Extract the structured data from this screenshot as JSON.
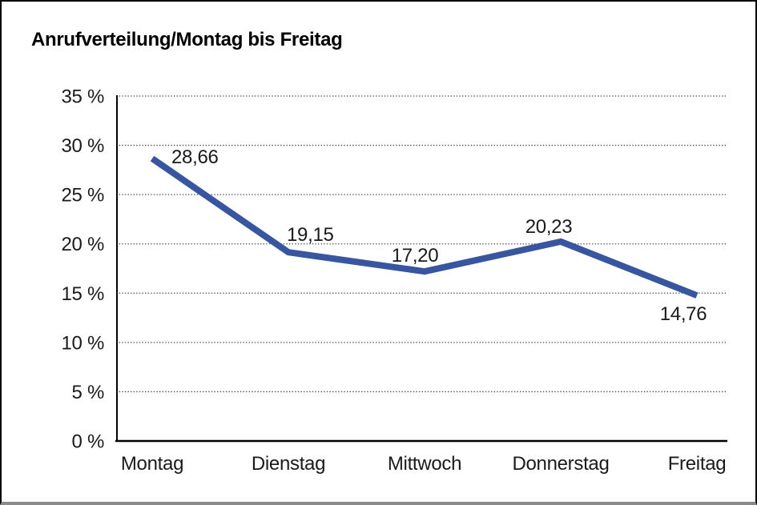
{
  "chart_data": {
    "type": "line",
    "title": "Anrufverteilung/Montag bis Freitag",
    "categories": [
      "Montag",
      "Dienstag",
      "Mittwoch",
      "Donnerstag",
      "Freitag"
    ],
    "series": [
      {
        "name": "Anrufverteilung",
        "values": [
          28.66,
          19.15,
          17.2,
          20.23,
          14.76
        ]
      }
    ],
    "point_labels": [
      "28,66",
      "19,15",
      "17,20",
      "20,23",
      "14,76"
    ],
    "y_ticks": [
      {
        "value": 0,
        "label": "0 %"
      },
      {
        "value": 5,
        "label": "5 %"
      },
      {
        "value": 10,
        "label": "10 %"
      },
      {
        "value": 15,
        "label": "15 %"
      },
      {
        "value": 20,
        "label": "20 %"
      },
      {
        "value": 25,
        "label": "25 %"
      },
      {
        "value": 30,
        "label": "30 %"
      },
      {
        "value": 35,
        "label": "35 %"
      }
    ],
    "ylim": [
      0,
      35
    ],
    "xlabel": "",
    "ylabel": "",
    "grid": "horizontal-dotted",
    "legend": "none",
    "line_color": "#3855A0",
    "axis_color": "#000000",
    "grid_color": "#4d4d4d",
    "text_color": "#1a1a1a"
  }
}
